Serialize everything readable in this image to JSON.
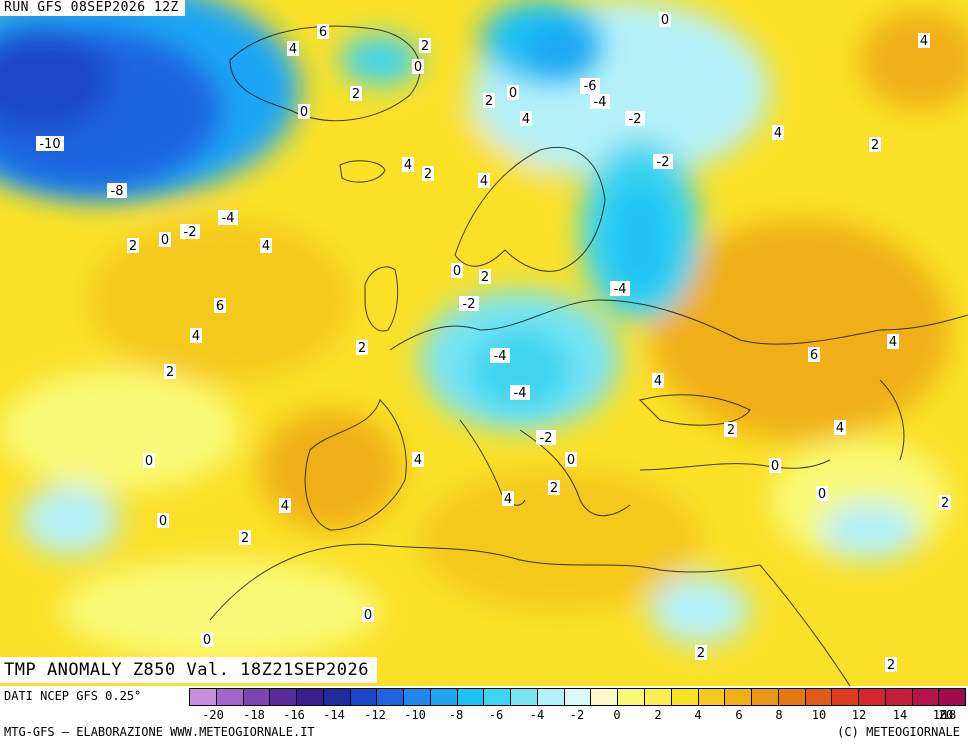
{
  "header": {
    "run": "RUN GFS 08SEP2026 12Z"
  },
  "title": {
    "text": "TMP ANOMALY Z850 Val. 18Z21SEP2026"
  },
  "footer": {
    "source": "DATI NCEP GFS 0.25°",
    "credit_left": "MTG-GFS – ELABORAZIONE WWW.METEOGIORNALE.IT",
    "credit_right": "(C) METEOGIORNALE"
  },
  "scale": {
    "colors": [
      "#c88ee0",
      "#a464cc",
      "#7e44b4",
      "#5a2a9c",
      "#3a1e90",
      "#1e2ca0",
      "#1c46c8",
      "#1e64e0",
      "#2286f0",
      "#1ea6f4",
      "#1ec2f4",
      "#3cd4f0",
      "#78e4f4",
      "#b4f0f8",
      "#dcf8fa",
      "#fafac8",
      "#fafa78",
      "#faf050",
      "#fae128",
      "#f5c81e",
      "#f0af14",
      "#eb9614",
      "#e67814",
      "#e15a14",
      "#dc3c1e",
      "#d2282d",
      "#c31e3c",
      "#b4144b",
      "#a00a50"
    ],
    "ticks": [
      "-20",
      "-18",
      "-16",
      "-14",
      "-12",
      "-10",
      "-8",
      "-6",
      "-4",
      "-2",
      "0",
      "2",
      "4",
      "6",
      "8",
      "10",
      "12",
      "14",
      "16",
      "18",
      "20"
    ]
  },
  "map_labels": [
    "6",
    "4",
    "2",
    "0",
    "2",
    "-6",
    "-4",
    "0",
    "0",
    "4",
    "-6",
    "-10",
    "2",
    "0",
    "2",
    "-8",
    "-4",
    "-2",
    "-2",
    "0",
    "-2",
    "4",
    "2",
    "4",
    "-4",
    "4",
    "2",
    "0",
    "4",
    "-2",
    "2",
    "6",
    "4",
    "6",
    "-4",
    "2",
    "-4",
    "2",
    "4",
    "-4",
    "6",
    "2",
    "4",
    "4",
    "-2",
    "0",
    "4",
    "0",
    "0",
    "4",
    "2",
    "4",
    "2",
    "2",
    "0",
    "0",
    "0",
    "2",
    "2",
    "0",
    "4",
    "2"
  ]
}
